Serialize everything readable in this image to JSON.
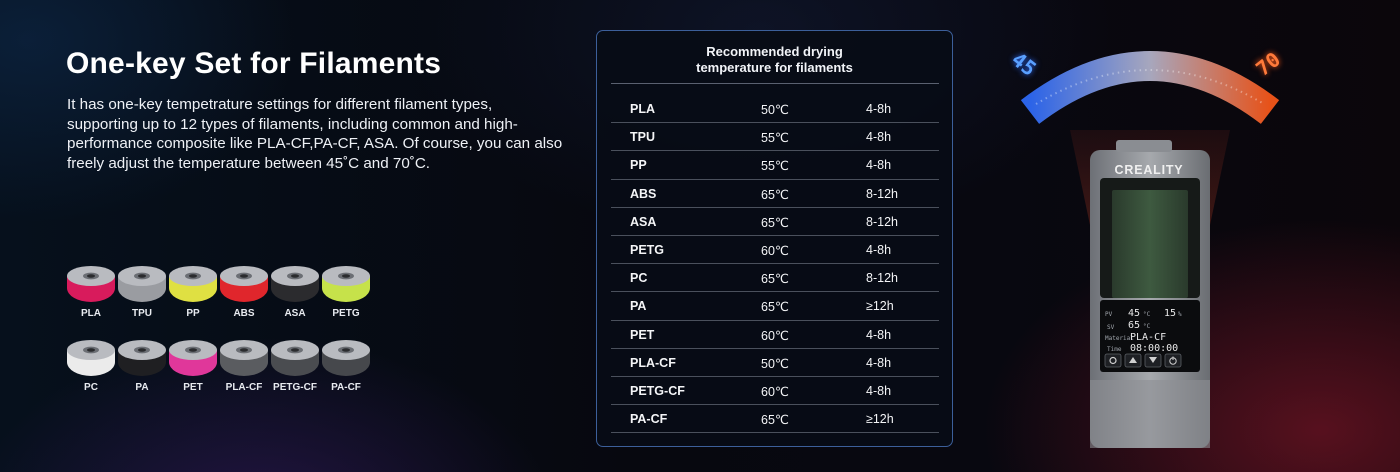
{
  "header": {
    "title": "One-key Set for Filaments",
    "description": "It has one-key tempetrature settings for different filament types, supporting up to 12 types of filaments,  including common and high-performance composite like PLA-CF,PA-CF, ASA. Of course, you can also freely adjust the temperature between 45˚C and 70˚C."
  },
  "spools": [
    {
      "label": "PLA",
      "color": "#d81b5c"
    },
    {
      "label": "TPU",
      "color": "#9a9ca1"
    },
    {
      "label": "PP",
      "color": "#dfe042"
    },
    {
      "label": "ABS",
      "color": "#e0262c"
    },
    {
      "label": "ASA",
      "color": "#2b2b2e"
    },
    {
      "label": "PETG",
      "color": "#c6e24a"
    },
    {
      "label": "PC",
      "color": "#ebebeb"
    },
    {
      "label": "PA",
      "color": "#1f1f22"
    },
    {
      "label": "PET",
      "color": "#e0379a"
    },
    {
      "label": "PLA-CF",
      "color": "#5a5c60"
    },
    {
      "label": "PETG-CF",
      "color": "#4a4c50"
    },
    {
      "label": "PA-CF",
      "color": "#46484c"
    }
  ],
  "table": {
    "title": "Recommended drying\ntemperature for filaments",
    "rows": [
      {
        "type": "PLA",
        "temp": "50℃",
        "time": "4-8h"
      },
      {
        "type": "TPU",
        "temp": "55℃",
        "time": "4-8h"
      },
      {
        "type": "PP",
        "temp": "55℃",
        "time": "4-8h"
      },
      {
        "type": "ABS",
        "temp": "65℃",
        "time": "8-12h"
      },
      {
        "type": "ASA",
        "temp": "65℃",
        "time": "8-12h"
      },
      {
        "type": "PETG",
        "temp": "60℃",
        "time": "4-8h"
      },
      {
        "type": "PC",
        "temp": "65℃",
        "time": "8-12h"
      },
      {
        "type": "PA",
        "temp": "65℃",
        "time": "≥12h"
      },
      {
        "type": "PET",
        "temp": "60℃",
        "time": "4-8h"
      },
      {
        "type": "PLA-CF",
        "temp": "50℃",
        "time": "4-8h"
      },
      {
        "type": "PETG-CF",
        "temp": "60℃",
        "time": "4-8h"
      },
      {
        "type": "PA-CF",
        "temp": "65℃",
        "time": "≥12h"
      }
    ]
  },
  "device": {
    "dial_min": "45",
    "dial_max": "70",
    "brand": "CREALITY",
    "lcd": {
      "pv_label": "PV",
      "pv_value": "45",
      "pv_unit": "°C",
      "humidity_value": "15",
      "humidity_unit": "%",
      "sv_label": "SV",
      "sv_value": "65",
      "sv_unit": "°C",
      "material_label": "Material",
      "material_value": "PLA-CF",
      "time_label": "Time",
      "time_value": "08:00:00"
    }
  }
}
